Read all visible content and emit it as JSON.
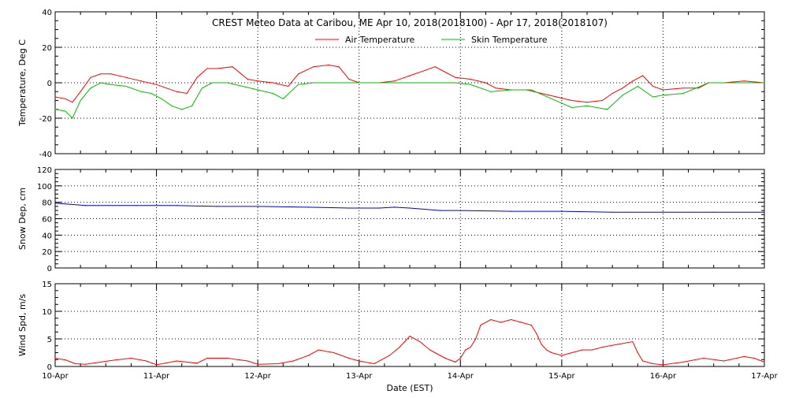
{
  "chart_data": [
    {
      "type": "line",
      "title": "CREST Meteo Data at Caribou, ME   Apr 10, 2018(2018100) - Apr 17, 2018(2018107)",
      "xlabel": "",
      "ylabel": "Temperature, Deg C",
      "ylim": [
        -40,
        40
      ],
      "yticks": [
        "-40",
        "-20",
        "0",
        "20",
        "40"
      ],
      "xlim_days": [
        10,
        17
      ],
      "grid": true,
      "legend": "top-center",
      "colors": {
        "Air Temperature": "#ff0000",
        "Skin Temperature": "#00c000"
      },
      "series": [
        {
          "name": "Air Temperature",
          "x": [
            10.0,
            10.1,
            10.17,
            10.25,
            10.35,
            10.45,
            10.55,
            10.7,
            10.85,
            11.0,
            11.1,
            11.2,
            11.3,
            11.4,
            11.5,
            11.6,
            11.75,
            11.9,
            12.0,
            12.15,
            12.3,
            12.4,
            12.55,
            12.7,
            12.8,
            12.9,
            13.0,
            13.2,
            13.35,
            13.5,
            13.65,
            13.75,
            13.85,
            13.95,
            14.1,
            14.25,
            14.35,
            14.5,
            14.65,
            14.8,
            14.95,
            15.1,
            15.25,
            15.4,
            15.5,
            15.6,
            15.7,
            15.8,
            15.9,
            16.0,
            16.2,
            16.35,
            16.45,
            16.6,
            16.8,
            17.0
          ],
          "values": [
            -8,
            -9,
            -11,
            -5,
            3,
            5,
            5,
            3,
            1,
            -1,
            -3,
            -5,
            -6,
            3,
            8,
            8,
            9,
            2,
            1,
            0,
            -2,
            5,
            9,
            10,
            9,
            2,
            0,
            0,
            1,
            4,
            7,
            9,
            6,
            3,
            2,
            0,
            -3,
            -4,
            -4,
            -6,
            -8,
            -10,
            -11,
            -10,
            -6,
            -3,
            1,
            4,
            -2,
            -4,
            -3,
            -3,
            0,
            0,
            1,
            0
          ]
        },
        {
          "name": "Skin Temperature",
          "x": [
            10.0,
            10.1,
            10.17,
            10.25,
            10.35,
            10.45,
            10.55,
            10.7,
            10.85,
            10.95,
            11.05,
            11.15,
            11.25,
            11.35,
            11.45,
            11.55,
            11.7,
            11.85,
            12.0,
            12.15,
            12.25,
            12.4,
            12.55,
            12.8,
            13.0,
            13.3,
            13.6,
            13.95,
            14.1,
            14.3,
            14.5,
            14.7,
            14.9,
            15.1,
            15.25,
            15.45,
            15.6,
            15.75,
            15.9,
            16.0,
            16.2,
            16.45,
            16.7,
            17.0
          ],
          "values": [
            -15,
            -16,
            -20,
            -10,
            -3,
            0,
            -1,
            -2,
            -5,
            -6,
            -9,
            -13,
            -15,
            -13,
            -3,
            0,
            0,
            -2,
            -4,
            -6,
            -9,
            -1,
            0,
            0,
            0,
            0,
            0,
            0,
            -1,
            -5,
            -4,
            -4,
            -9,
            -14,
            -13,
            -15,
            -7,
            -2,
            -8,
            -7,
            -6,
            0,
            0,
            0
          ]
        }
      ]
    },
    {
      "type": "line",
      "title": "",
      "xlabel": "",
      "ylabel": "Snow Dep, cm",
      "ylim": [
        0,
        120
      ],
      "yticks": [
        "0",
        "20",
        "40",
        "60",
        "80",
        "100",
        "120"
      ],
      "xlim_days": [
        10,
        17
      ],
      "grid": true,
      "colors": {
        "Snow Depth": "#0000c0"
      },
      "series": [
        {
          "x": [
            10.0,
            10.3,
            10.8,
            11.2,
            11.6,
            12.0,
            12.5,
            12.9,
            13.2,
            13.35,
            13.5,
            13.8,
            14.0,
            14.5,
            15.0,
            15.5,
            16.0,
            16.5,
            17.0
          ],
          "values": [
            79,
            76,
            76,
            76,
            75,
            75,
            74,
            73,
            73,
            74,
            73,
            70,
            70,
            69,
            69,
            68,
            68,
            68,
            68
          ]
        }
      ]
    },
    {
      "type": "line",
      "title": "",
      "xlabel": "Date (EST)",
      "ylabel": "Wind Spd, m/s",
      "ylim": [
        0,
        15
      ],
      "yticks": [
        "0",
        "5",
        "10",
        "15"
      ],
      "xticks": [
        "10-Apr",
        "11-Apr",
        "12-Apr",
        "13-Apr",
        "14-Apr",
        "15-Apr",
        "16-Apr",
        "17-Apr"
      ],
      "xlim_days": [
        10,
        17
      ],
      "grid": true,
      "colors": {
        "Wind Speed": "#ff0000"
      },
      "series": [
        {
          "x": [
            10.0,
            10.1,
            10.2,
            10.3,
            10.45,
            10.6,
            10.75,
            10.9,
            11.0,
            11.2,
            11.4,
            11.5,
            11.7,
            11.9,
            12.0,
            12.2,
            12.35,
            12.5,
            12.6,
            12.75,
            12.9,
            13.0,
            13.15,
            13.3,
            13.4,
            13.45,
            13.5,
            13.6,
            13.7,
            13.75,
            13.85,
            13.95,
            14.0,
            14.05,
            14.1,
            14.15,
            14.2,
            14.3,
            14.4,
            14.5,
            14.6,
            14.7,
            14.75,
            14.8,
            14.85,
            14.9,
            15.0,
            15.1,
            15.2,
            15.3,
            15.4,
            15.55,
            15.7,
            15.75,
            15.8,
            15.9,
            16.0,
            16.2,
            16.4,
            16.6,
            16.8,
            16.9,
            17.0
          ],
          "values": [
            1.5,
            1.2,
            0.5,
            0.4,
            0.8,
            1.2,
            1.5,
            1.0,
            0.3,
            1.0,
            0.6,
            1.5,
            1.5,
            1.0,
            0.4,
            0.5,
            1.0,
            2.0,
            3.0,
            2.5,
            1.5,
            1.0,
            0.5,
            2.0,
            3.5,
            4.5,
            5.5,
            4.5,
            3.0,
            2.5,
            1.5,
            0.8,
            1.5,
            3.0,
            3.5,
            5.0,
            7.5,
            8.5,
            8.0,
            8.5,
            8.0,
            7.5,
            6.0,
            4.0,
            3.0,
            2.5,
            2.0,
            2.5,
            3.0,
            3.0,
            3.5,
            4.0,
            4.5,
            2.5,
            1.0,
            0.5,
            0.3,
            0.8,
            1.5,
            1.0,
            1.8,
            1.5,
            0.8
          ]
        }
      ]
    }
  ]
}
